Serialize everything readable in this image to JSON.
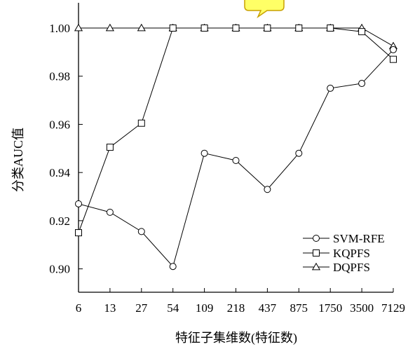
{
  "chart_data": {
    "type": "line",
    "title": "",
    "xlabel": "特征子集维数(特征数)",
    "ylabel": "分类AUC值",
    "categories": [
      "6",
      "13",
      "27",
      "54",
      "109",
      "218",
      "437",
      "875",
      "1750",
      "3500",
      "7129"
    ],
    "ylim": [
      0.89,
      1.0
    ],
    "yticks": [
      "0.90",
      "0.92",
      "0.94",
      "0.96",
      "0.98",
      "1.00"
    ],
    "grid": false,
    "legend_position": "bottom-right",
    "series": [
      {
        "name": "SVM-RFE",
        "marker": "circle",
        "values": [
          0.927,
          0.9235,
          0.9155,
          0.901,
          0.948,
          0.945,
          0.933,
          0.948,
          0.975,
          0.977,
          0.991
        ]
      },
      {
        "name": "KQPFS",
        "marker": "square",
        "values": [
          0.915,
          0.9505,
          0.9605,
          1.0,
          1.0,
          1.0,
          1.0,
          1.0,
          1.0,
          0.9985,
          0.987
        ]
      },
      {
        "name": "DQPFS",
        "marker": "triangle",
        "values": [
          1.0,
          1.0,
          1.0,
          1.0,
          1.0,
          1.0,
          1.0,
          1.0,
          1.0,
          1.0,
          0.9925
        ]
      }
    ]
  },
  "colors": {
    "line": "#000000",
    "callout_fill": "#ffff66",
    "callout_stroke": "#c8a000"
  }
}
